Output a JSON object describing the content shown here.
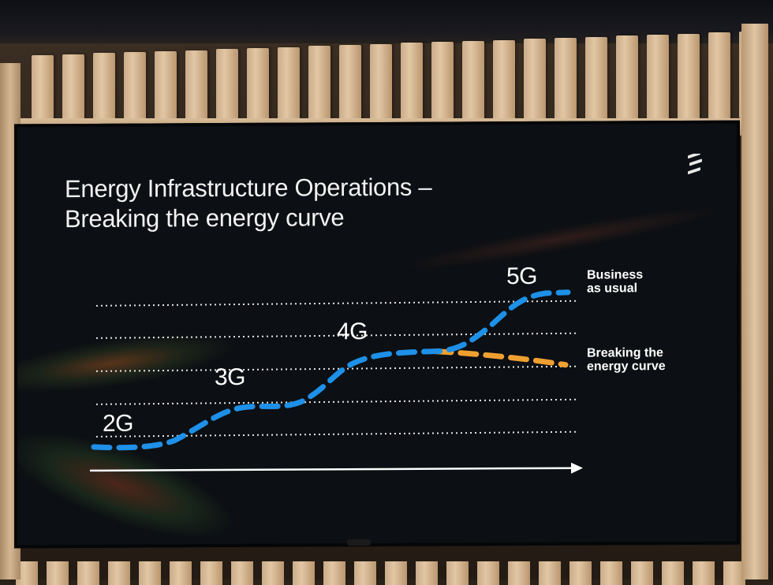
{
  "slide": {
    "title_line1": "Energy Infrastructure Operations –",
    "title_line2": "Breaking the energy curve",
    "logo": "ericsson-logo-icon"
  },
  "chart_data": {
    "type": "line",
    "title": "",
    "stage_labels": [
      "2G",
      "3G",
      "4G",
      "5G"
    ],
    "series": [
      {
        "name": "Business as usual",
        "color": "#1e90e8",
        "style": "dashed"
      },
      {
        "name": "Breaking the energy curve",
        "color": "#f0a030",
        "style": "dashed"
      }
    ],
    "legend": {
      "business_line1": "Business",
      "business_line2": "as usual",
      "breaking_line1": "Breaking the",
      "breaking_line2": "energy curve"
    },
    "grid": true,
    "x_axis_arrow": true
  }
}
